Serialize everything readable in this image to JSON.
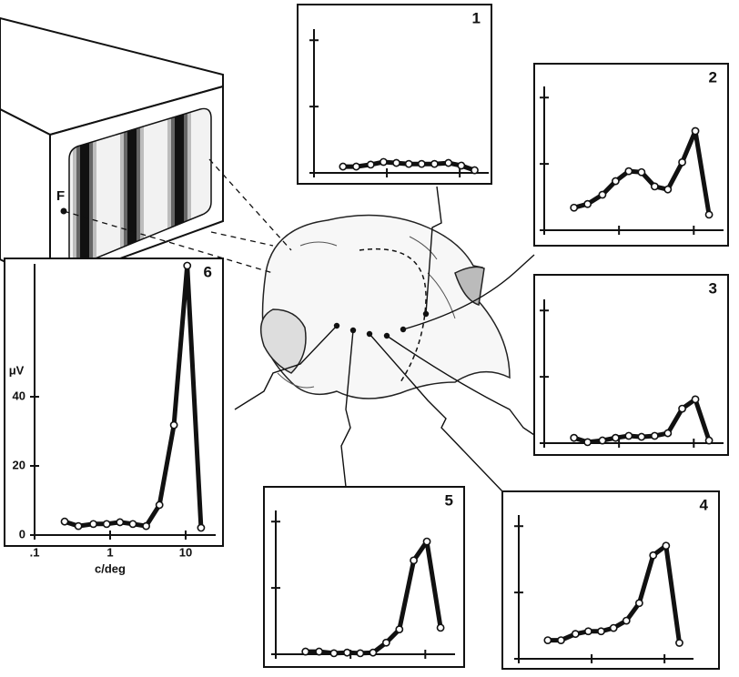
{
  "stimulus": {
    "fixation_label": "F"
  },
  "chart_data": [
    {
      "type": "line",
      "title": "1",
      "log_x": true,
      "tick_labels": false,
      "color": "#111111",
      "x": [
        0.25,
        0.38,
        0.6,
        0.9,
        1.35,
        2,
        3,
        4.5,
        7,
        10.5,
        16
      ],
      "values": [
        1.9,
        1.9,
        2.5,
        3.3,
        3,
        2.7,
        2.7,
        2.7,
        3,
        2.2,
        0.8
      ],
      "xlim": [
        0.1,
        25
      ],
      "ylim": [
        0,
        45
      ],
      "xticks": [
        {
          "value": 0.1,
          "label": ".1"
        },
        1,
        10
      ],
      "yticks": [
        0,
        20,
        40
      ]
    },
    {
      "type": "line",
      "title": "2",
      "log_x": true,
      "tick_labels": false,
      "color": "#111111",
      "x": [
        0.25,
        0.38,
        0.6,
        0.9,
        1.35,
        2,
        3,
        4.5,
        7,
        10.5,
        16
      ],
      "values": [
        6.8,
        7.9,
        10.7,
        14.8,
        17.8,
        17.5,
        13.2,
        12.3,
        20.5,
        29.9,
        4.7
      ],
      "xlim": [
        0.1,
        25
      ],
      "ylim": [
        0,
        45
      ],
      "xticks": [
        {
          "value": 0.1,
          "label": ".1"
        },
        1,
        10
      ],
      "yticks": [
        0,
        20,
        40
      ]
    },
    {
      "type": "line",
      "title": "3",
      "log_x": true,
      "tick_labels": false,
      "color": "#111111",
      "x": [
        0.25,
        0.38,
        0.6,
        0.9,
        1.35,
        2,
        3,
        4.5,
        7,
        10.5,
        16
      ],
      "values": [
        1.6,
        0.3,
        0.8,
        1.6,
        2.2,
        1.9,
        2.2,
        3,
        10.4,
        13.2,
        0.8
      ],
      "xlim": [
        0.1,
        25
      ],
      "ylim": [
        0,
        45
      ],
      "xticks": [
        {
          "value": 0.1,
          "label": ".1"
        },
        1,
        10
      ],
      "yticks": [
        0,
        20,
        40
      ]
    },
    {
      "type": "line",
      "title": "4",
      "log_x": true,
      "tick_labels": false,
      "color": "#111111",
      "x": [
        0.25,
        0.38,
        0.6,
        0.9,
        1.35,
        2,
        3,
        4.5,
        7,
        10.5,
        16
      ],
      "values": [
        5.6,
        5.6,
        7.5,
        8.3,
        8.3,
        9.3,
        11.5,
        16.8,
        31.2,
        34.1,
        4.8
      ],
      "xlim": [
        0.1,
        25
      ],
      "ylim": [
        0,
        45
      ],
      "xticks": [
        {
          "value": 0.1,
          "label": ".1"
        },
        1,
        10
      ],
      "yticks": [
        0,
        20,
        40
      ]
    },
    {
      "type": "line",
      "title": "5",
      "log_x": true,
      "tick_labels": false,
      "color": "#111111",
      "x": [
        0.25,
        0.38,
        0.6,
        0.9,
        1.35,
        2,
        3,
        4.5,
        7,
        10.5,
        16
      ],
      "values": [
        0.8,
        0.8,
        0.3,
        0.5,
        0.3,
        0.5,
        3.5,
        7.5,
        28.3,
        34,
        8
      ],
      "xlim": [
        0.1,
        25
      ],
      "ylim": [
        0,
        45
      ],
      "xticks": [
        {
          "value": 0.1,
          "label": ".1"
        },
        1,
        10
      ],
      "yticks": [
        0,
        20,
        40
      ]
    },
    {
      "type": "line",
      "title": "6",
      "ylabel": "μV",
      "xlabel": "c/deg",
      "log_x": true,
      "tick_labels": true,
      "color": "#111111",
      "x": [
        0.25,
        0.38,
        0.6,
        0.9,
        1.35,
        2,
        3,
        4.5,
        7,
        10.5,
        16
      ],
      "values": [
        3.9,
        2.6,
        3.2,
        3.2,
        3.7,
        3.2,
        2.6,
        8.7,
        31.8,
        77.9,
        2.1
      ],
      "xlim": [
        0.1,
        25
      ],
      "ylim": [
        0,
        80
      ],
      "xticks": [
        {
          "value": 0.1,
          "label": ".1"
        },
        1,
        10
      ],
      "yticks": [
        0,
        20,
        40
      ]
    }
  ]
}
